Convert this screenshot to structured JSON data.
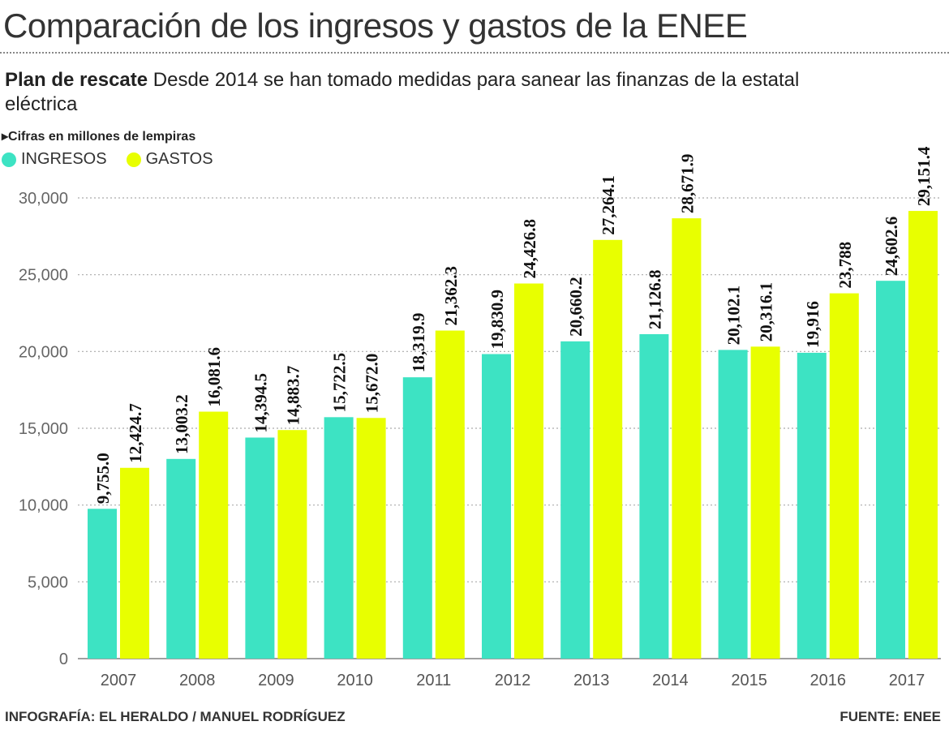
{
  "header": {
    "title": "Comparación de los ingresos y gastos de la ENEE",
    "subtitle_bold": "Plan de rescate",
    "subtitle_rest": " Desde 2014 se han tomado medidas para sanear las finanzas de la estatal eléctrica",
    "unit_note": "Cifras en millones de lempiras"
  },
  "footer": {
    "credit": "INFOGRAFÍA: EL HERALDO / MANUEL RODRÍGUEZ",
    "source": "FUENTE: ENEE"
  },
  "colors": {
    "ingresos": "#3de3c3",
    "gastos": "#e8ff00"
  },
  "chart_data": {
    "type": "bar",
    "title": "Comparación de los ingresos y gastos de la ENEE",
    "xlabel": "",
    "ylabel": "",
    "ylim": [
      0,
      30000
    ],
    "yticks": [
      0,
      5000,
      10000,
      15000,
      20000,
      25000,
      30000
    ],
    "ytick_labels": [
      "0",
      "5,000",
      "10,000",
      "15,000",
      "20,000",
      "25,000",
      "30,000"
    ],
    "grid": true,
    "legend_position": "top-left",
    "categories": [
      "2007",
      "2008",
      "2009",
      "2010",
      "2011",
      "2012",
      "2013",
      "2014",
      "2015",
      "2016",
      "2017"
    ],
    "series": [
      {
        "name": "INGRESOS",
        "values": [
          9755.0,
          13003.2,
          14394.5,
          15722.5,
          18319.9,
          19830.9,
          20660.2,
          21126.8,
          20102.1,
          19916,
          24602.6
        ],
        "labels": [
          "9,755.0",
          "13,003.2",
          "14,394.5",
          "15,722.5",
          "18,319.9",
          "19,830.9",
          "20,660.2",
          "21,126.8",
          "20,102.1",
          "19,916",
          "24,602.6"
        ]
      },
      {
        "name": "GASTOS",
        "values": [
          12424.7,
          16081.6,
          14883.7,
          15672.0,
          21362.3,
          24426.8,
          27264.1,
          28671.9,
          20316.1,
          23788,
          29151.4
        ],
        "labels": [
          "12,424.7",
          "16,081.6",
          "14,883.7",
          "15,672.0",
          "21,362.3",
          "24,426.8",
          "27,264.1",
          "28,671.9",
          "20,316.1",
          "23,788",
          "29,151.4"
        ]
      }
    ]
  }
}
